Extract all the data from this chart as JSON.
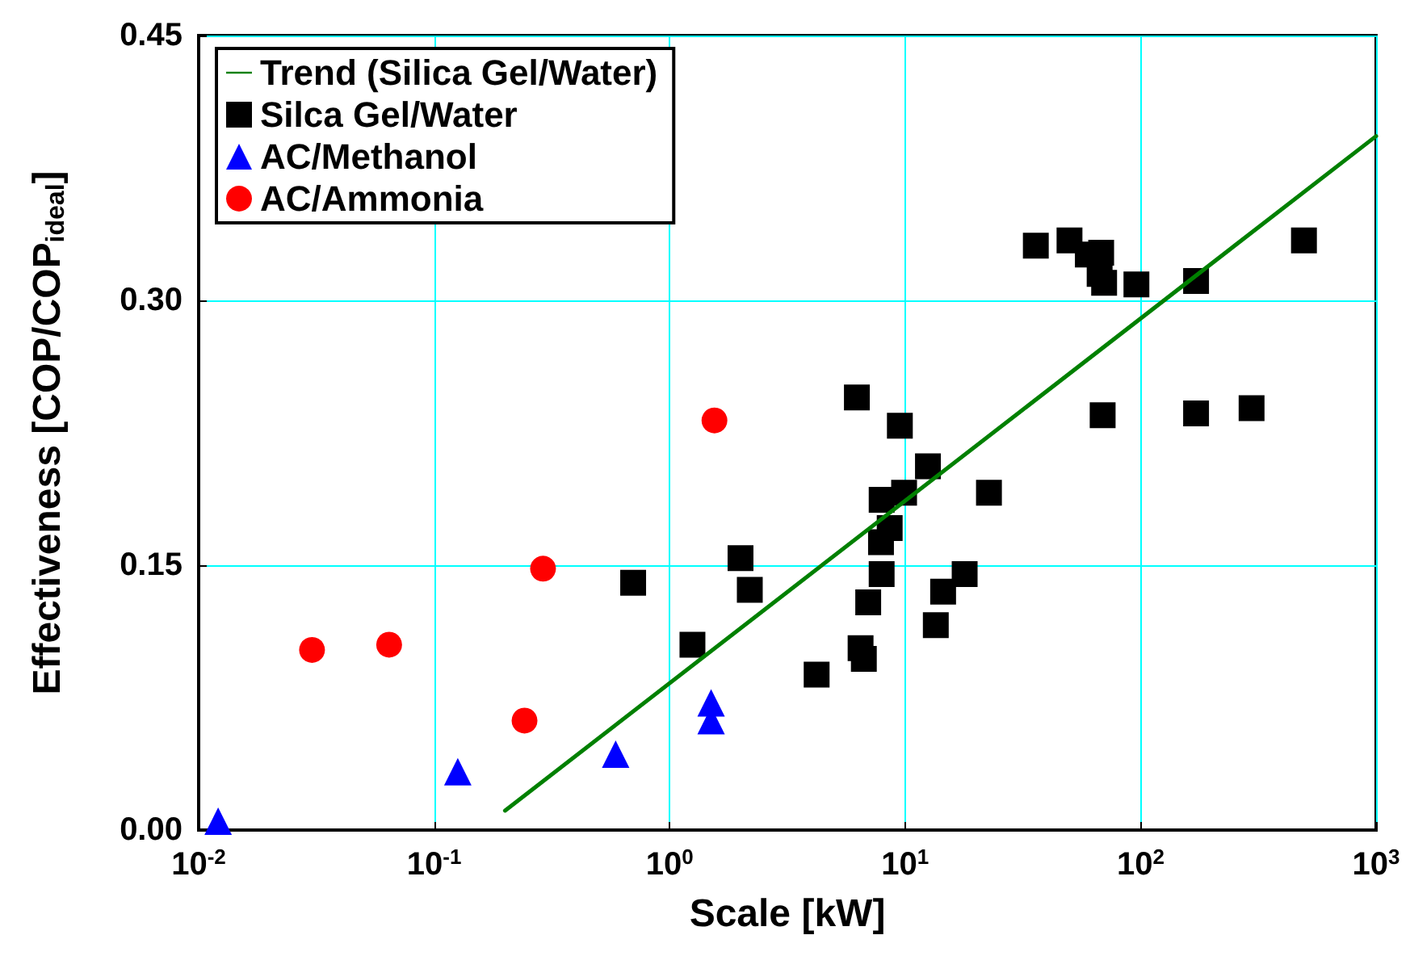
{
  "chart_data": {
    "type": "scatter",
    "xlabel": "Scale [kW]",
    "ylabel": "Effectiveness [COP/COP$_{ideal}$]",
    "log": "x",
    "grid": true,
    "legend": "top left",
    "xlim": [
      0.01,
      1000
    ],
    "xticks": [
      {
        "value": 0.01,
        "label": "10$^{-2}$"
      },
      {
        "value": 0.1,
        "label": "10$^{-1}$"
      },
      {
        "value": 1,
        "label": "10$^{0}$"
      },
      {
        "value": 10,
        "label": "10$^{1}$"
      },
      {
        "value": 100,
        "label": "10$^{2}$"
      },
      {
        "value": 1000,
        "label": "10$^{3}$"
      }
    ],
    "ylim": [
      0,
      0.45
    ],
    "yticks": [
      {
        "value": 0,
        "label": "0.00"
      },
      {
        "value": 0.15,
        "label": "0.15"
      },
      {
        "value": 0.3,
        "label": "0.30"
      },
      {
        "value": 0.45,
        "label": "0.45"
      }
    ],
    "series": [
      {
        "name": "Trend (Silica Gel/Water)",
        "type": "line",
        "color": "#008000",
        "marker": "none",
        "line_style": "solid",
        "x": [
          0.2,
          1000
        ],
        "values": [
          0.011,
          0.393
        ]
      },
      {
        "name": "Silca Gel/Water",
        "type": "scatter",
        "color": "#000000",
        "marker": "square",
        "x": [
          0.7,
          1.25,
          2.0,
          2.19,
          4.21,
          6.24,
          9.5,
          12.5,
          9.9,
          7.95,
          8.6,
          7.9,
          7.95,
          6.97,
          6.68,
          6.47,
          22.7,
          17.9,
          14.5,
          13.5,
          35.9,
          49.9,
          59.7,
          68,
          70,
          67,
          96,
          172,
          494,
          69,
          172,
          296
        ],
        "values": [
          0.14,
          0.105,
          0.154,
          0.136,
          0.088,
          0.245,
          0.229,
          0.206,
          0.191,
          0.187,
          0.171,
          0.163,
          0.145,
          0.129,
          0.097,
          0.103,
          0.191,
          0.145,
          0.135,
          0.116,
          0.331,
          0.334,
          0.326,
          0.327,
          0.31,
          0.315,
          0.309,
          0.311,
          0.334,
          0.235,
          0.236,
          0.239
        ]
      },
      {
        "name": "AC/Methanol",
        "type": "scatter",
        "color": "#0000ff",
        "marker": "triangle",
        "x": [
          0.0121,
          0.126,
          0.59,
          1.5,
          1.5
        ],
        "values": [
          0.005,
          0.033,
          0.043,
          0.072,
          0.062
        ]
      },
      {
        "name": "AC/Ammonia",
        "type": "scatter",
        "color": "#ff0000",
        "marker": "circle",
        "x": [
          0.0303,
          0.0644,
          0.29,
          0.242,
          1.55
        ],
        "values": [
          0.102,
          0.105,
          0.148,
          0.062,
          0.232
        ]
      }
    ]
  }
}
